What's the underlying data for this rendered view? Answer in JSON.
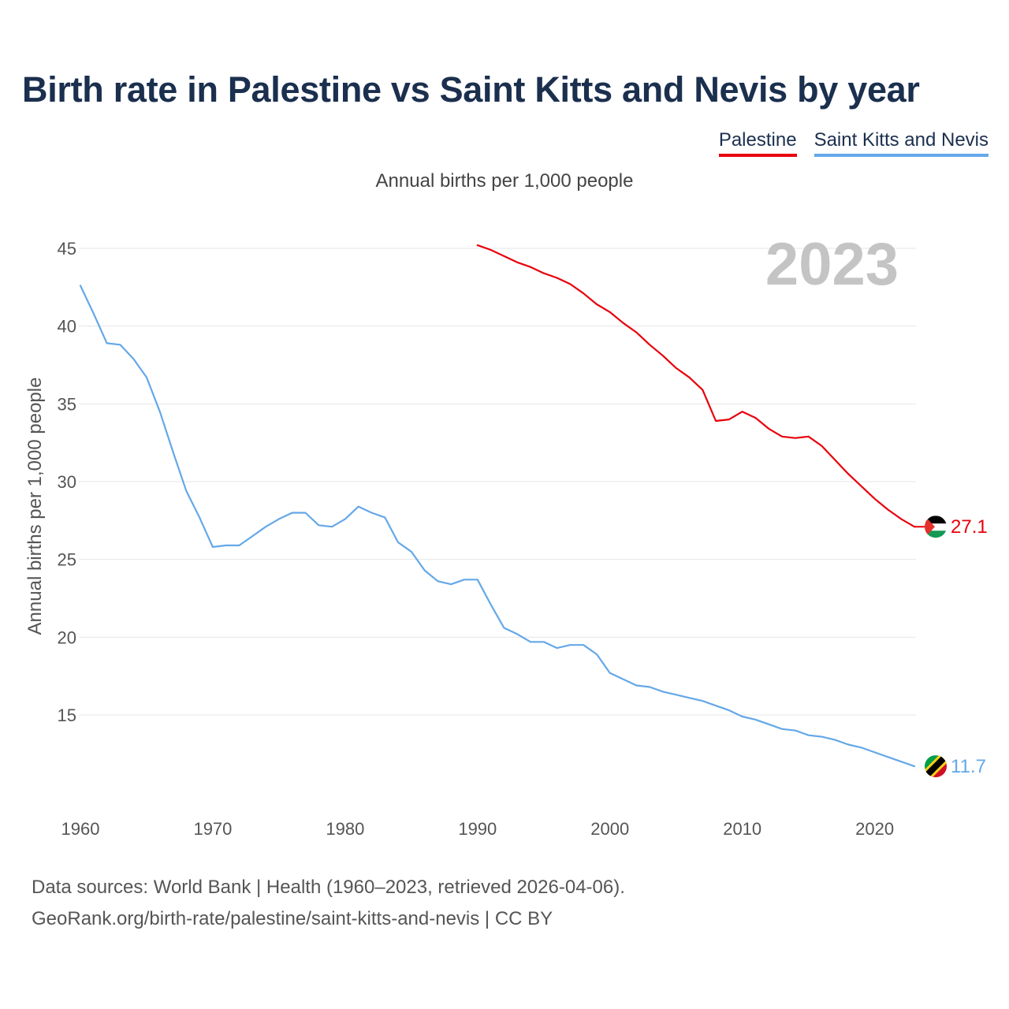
{
  "title": "Birth rate in Palestine vs Saint Kitts and Nevis by year",
  "subtitle": "Annual births per 1,000 people",
  "legend": [
    {
      "label": "Palestine",
      "color": "#e8000b"
    },
    {
      "label": "Saint Kitts and Nevis",
      "color": "#64a8e8"
    }
  ],
  "year_overlay": "2023",
  "footer": {
    "line1": "Data sources: World Bank | Health (1960–2023, retrieved 2026-04-06).",
    "line2": "GeoRank.org/birth-rate/palestine/saint-kitts-and-nevis | CC BY"
  },
  "chart_data": {
    "type": "line",
    "title": "Birth rate in Palestine vs Saint Kitts and Nevis by year",
    "ylabel": "Annual births per 1,000 people",
    "xlabel": "",
    "xlim": [
      1960,
      2023
    ],
    "ylim": [
      10,
      47
    ],
    "x_ticks": [
      1960,
      1970,
      1980,
      1990,
      2000,
      2010,
      2020
    ],
    "y_ticks": [
      15,
      20,
      25,
      30,
      35,
      40,
      45
    ],
    "grid": true,
    "legend_position": "top-right",
    "series": [
      {
        "name": "Palestine",
        "color": "#e8000b",
        "end_label": "27.1",
        "x": [
          1990,
          1991,
          1992,
          1993,
          1994,
          1995,
          1996,
          1997,
          1998,
          1999,
          2000,
          2001,
          2002,
          2003,
          2004,
          2005,
          2006,
          2007,
          2008,
          2009,
          2010,
          2011,
          2012,
          2013,
          2014,
          2015,
          2016,
          2017,
          2018,
          2019,
          2020,
          2021,
          2022,
          2023
        ],
        "values": [
          45.2,
          44.9,
          44.5,
          44.1,
          43.8,
          43.4,
          43.1,
          42.7,
          42.1,
          41.4,
          40.9,
          40.2,
          39.6,
          38.8,
          38.1,
          37.3,
          36.7,
          35.9,
          33.9,
          34.0,
          34.5,
          34.1,
          33.4,
          32.9,
          32.8,
          32.9,
          32.3,
          31.4,
          30.5,
          29.7,
          28.9,
          28.2,
          27.6,
          27.1
        ]
      },
      {
        "name": "Saint Kitts and Nevis",
        "color": "#64a8e8",
        "end_label": "11.7",
        "x": [
          1960,
          1961,
          1962,
          1963,
          1964,
          1965,
          1966,
          1967,
          1968,
          1969,
          1970,
          1971,
          1972,
          1973,
          1974,
          1975,
          1976,
          1977,
          1978,
          1979,
          1980,
          1981,
          1982,
          1983,
          1984,
          1985,
          1986,
          1987,
          1988,
          1989,
          1990,
          1991,
          1992,
          1993,
          1994,
          1995,
          1996,
          1997,
          1998,
          1999,
          2000,
          2001,
          2002,
          2003,
          2004,
          2005,
          2006,
          2007,
          2008,
          2009,
          2010,
          2011,
          2012,
          2013,
          2014,
          2015,
          2016,
          2017,
          2018,
          2019,
          2020,
          2021,
          2022,
          2023
        ],
        "values": [
          42.6,
          40.8,
          38.9,
          38.8,
          37.9,
          36.7,
          34.5,
          31.9,
          29.4,
          27.7,
          25.8,
          25.9,
          25.9,
          26.5,
          27.1,
          27.6,
          28.0,
          28.0,
          27.2,
          27.1,
          27.6,
          28.4,
          28.0,
          27.7,
          26.1,
          25.5,
          24.3,
          23.6,
          23.4,
          23.7,
          23.7,
          22.1,
          20.6,
          20.2,
          19.7,
          19.7,
          19.3,
          19.5,
          19.5,
          18.9,
          17.7,
          17.3,
          16.9,
          16.8,
          16.5,
          16.3,
          16.1,
          15.9,
          15.6,
          15.3,
          14.9,
          14.7,
          14.4,
          14.1,
          14.0,
          13.7,
          13.6,
          13.4,
          13.1,
          12.9,
          12.6,
          12.3,
          12.0,
          11.7
        ]
      }
    ]
  }
}
